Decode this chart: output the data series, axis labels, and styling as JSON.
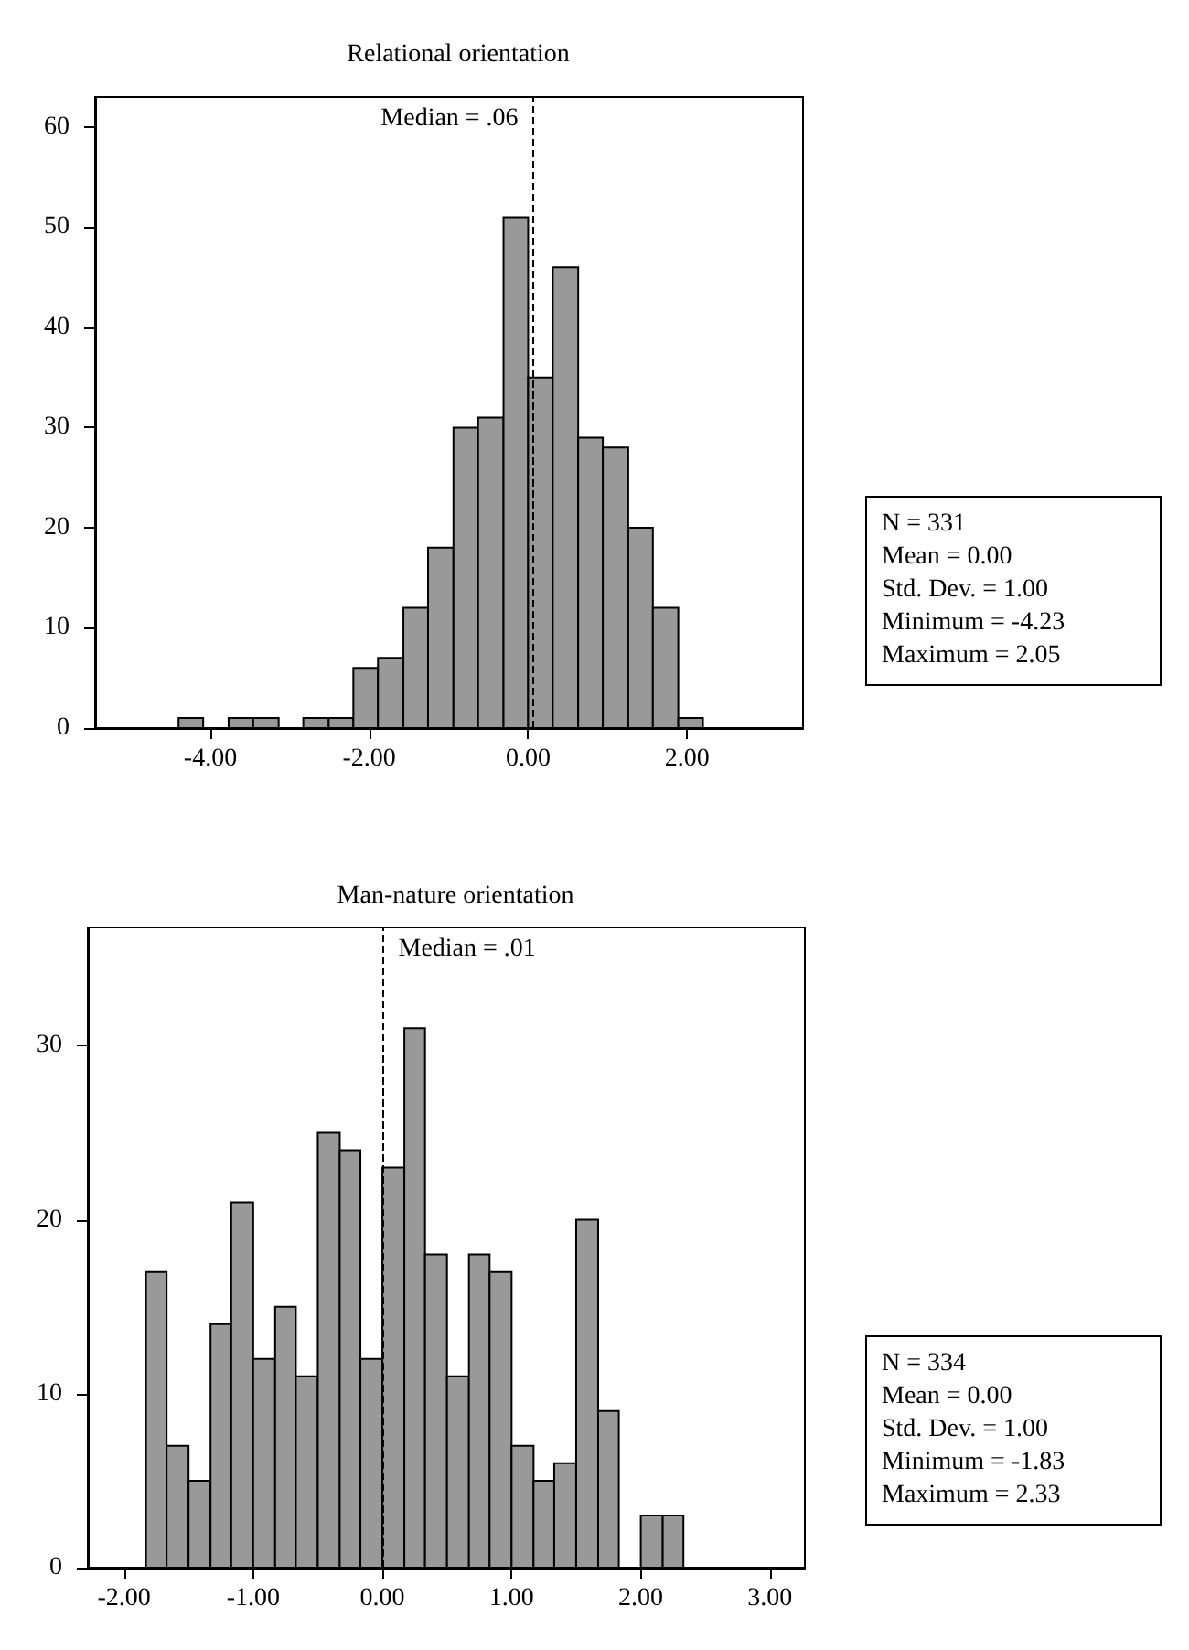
{
  "chart_data": [
    {
      "type": "histogram",
      "title": "Relational orientation",
      "color": "#999999",
      "bins": [
        -4.4,
        -4.09,
        -3.77,
        -3.46,
        -3.14,
        -2.83,
        -2.51,
        -2.2,
        -1.89,
        -1.57,
        -1.26,
        -0.94,
        -0.63,
        -0.31,
        0.0,
        0.31,
        0.63,
        0.94,
        1.26,
        1.57,
        1.89,
        2.2
      ],
      "values": [
        1,
        0,
        1,
        1,
        0,
        1,
        1,
        6,
        7,
        12,
        18,
        30,
        31,
        51,
        35,
        46,
        29,
        28,
        20,
        12,
        1
      ],
      "xlim": [
        -5.45,
        3.46
      ],
      "ylim": [
        0,
        63
      ],
      "xticks": [
        {
          "value": -4,
          "label": "-4.00"
        },
        {
          "value": -2,
          "label": "-2.00"
        },
        {
          "value": 0,
          "label": "0.00"
        },
        {
          "value": 2,
          "label": "2.00"
        }
      ],
      "yticks": [
        0,
        10,
        20,
        30,
        40,
        50,
        60
      ],
      "ref_lines": [
        {
          "axis": "x",
          "value": 0.06,
          "label": "Median = .06",
          "color": "#000000",
          "line_style": "dashed"
        }
      ],
      "annotations": [
        "N = 331",
        "Mean = 0.00",
        "Std. Dev. = 1.00",
        "Minimum = -4.23",
        "Maximum = 2.05"
      ],
      "grid": false
    },
    {
      "type": "histogram",
      "title": "Man-nature orientation",
      "color": "#999999",
      "bins": [
        -1.83,
        -1.67,
        -1.5,
        -1.33,
        -1.17,
        -1.0,
        -0.83,
        -0.67,
        -0.5,
        -0.33,
        -0.17,
        0.0,
        0.17,
        0.33,
        0.5,
        0.67,
        0.83,
        1.0,
        1.17,
        1.33,
        1.5,
        1.67,
        1.83,
        2.0,
        2.17,
        2.33
      ],
      "values": [
        17,
        7,
        5,
        14,
        21,
        12,
        15,
        11,
        25,
        24,
        12,
        23,
        31,
        18,
        11,
        18,
        17,
        7,
        5,
        6,
        20,
        9,
        0,
        3,
        3
      ],
      "xlim": [
        -2.28,
        3.27
      ],
      "ylim": [
        0,
        36.8
      ],
      "xticks": [
        {
          "value": -2,
          "label": "-2.00"
        },
        {
          "value": -1,
          "label": "-1.00"
        },
        {
          "value": 0,
          "label": "0.00"
        },
        {
          "value": 1,
          "label": "1.00"
        },
        {
          "value": 2,
          "label": "2.00"
        },
        {
          "value": 3,
          "label": "3.00"
        }
      ],
      "yticks": [
        0,
        10,
        20,
        30
      ],
      "ref_lines": [
        {
          "axis": "x",
          "value": 0.01,
          "label": "Median = .01",
          "color": "#000000",
          "line_style": "dashed"
        }
      ],
      "annotations": [
        "N = 334",
        "Mean = 0.00",
        "Std. Dev. = 1.00",
        "Minimum = -1.83",
        "Maximum = 2.33"
      ],
      "grid": false
    }
  ]
}
